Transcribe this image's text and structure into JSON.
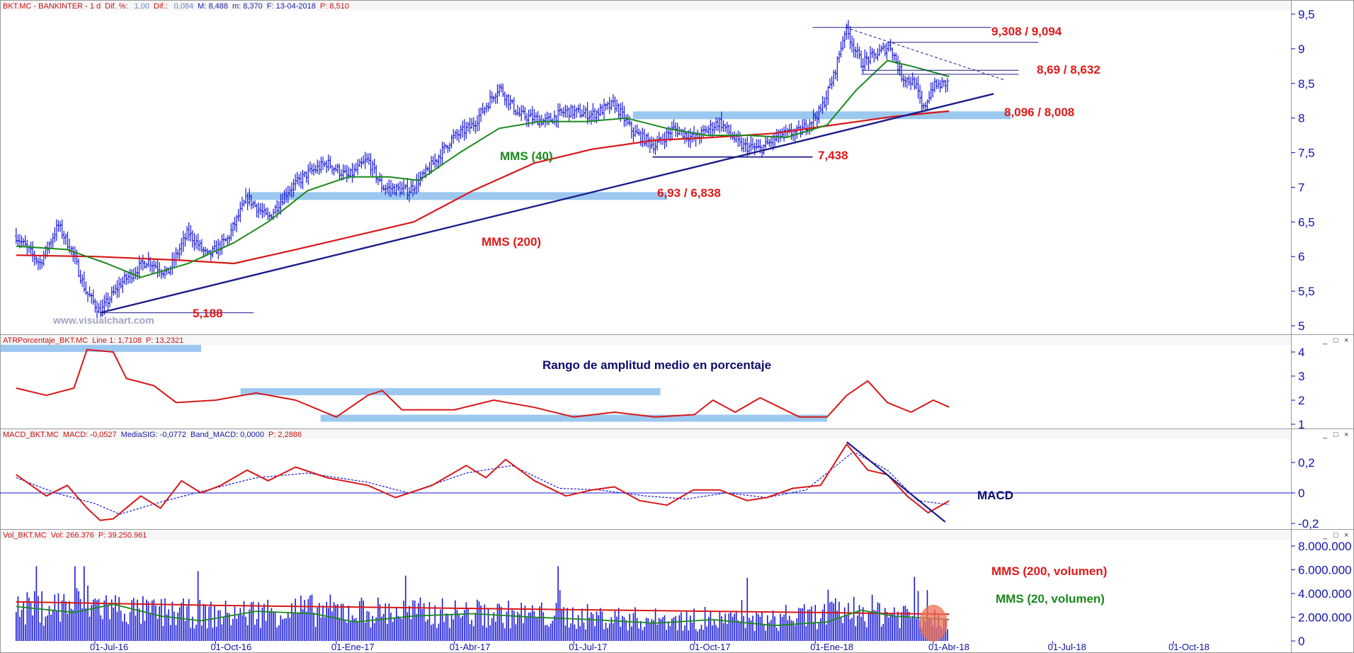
{
  "colors": {
    "price_bars": "#1818d8",
    "sma40": "#1a8a1a",
    "sma200": "#d81818",
    "trendline": "#1c1c8c",
    "zone": "#9cc8f0",
    "label_red": "#e01818",
    "label_navy": "#0c0c6c",
    "label_green": "#1a8a1a",
    "axis_text": "#1212a8",
    "header_red": "#cc1010",
    "header_blue": "#1c1ca8",
    "header_gray": "#6a88c8",
    "volume_highlight": "#f07050"
  },
  "watermark": "www.visualchart.com",
  "panels": {
    "price": {
      "header": [
        {
          "text": "BKT.MC - BANKINTER - 1 d",
          "color": "red"
        },
        {
          "text": "Dif. %: ",
          "color": "red"
        },
        {
          "text": "1,00",
          "color": "gray"
        },
        {
          "text": "Dif.: ",
          "color": "red"
        },
        {
          "text": "0,084",
          "color": "gray"
        },
        {
          "text": "M: 8,488",
          "color": "blue"
        },
        {
          "text": "m: 8,370",
          "color": "blue"
        },
        {
          "text": "F: 13-04-2018",
          "color": "blue"
        },
        {
          "text": "P: 8,510",
          "color": "red"
        }
      ],
      "y_ticks": [
        "9,5",
        "9",
        "8,5",
        "8",
        "7,5",
        "7",
        "6,5",
        "6",
        "5,5",
        "5"
      ]
    },
    "atr": {
      "header": [
        {
          "text": "ATRPorcentaje_BKT.MC",
          "color": "red"
        },
        {
          "text": "Line 1: 1,7108",
          "color": "red"
        },
        {
          "text": "P: 13,2321",
          "color": "red"
        }
      ],
      "y_ticks": [
        "4",
        "3",
        "2",
        "1"
      ]
    },
    "macd": {
      "header": [
        {
          "text": "MACD_BKT.MC",
          "color": "red"
        },
        {
          "text": "MACD: -0,0527",
          "color": "red"
        },
        {
          "text": "MediaSIG: -0,0772",
          "color": "blue"
        },
        {
          "text": "Band_MACD: 0,0000",
          "color": "blue"
        },
        {
          "text": "P: 2,2886",
          "color": "red"
        }
      ],
      "y_ticks": [
        "0,2",
        "0",
        "-0,2"
      ]
    },
    "volume": {
      "header": [
        {
          "text": "Vol_BKT.MC",
          "color": "red"
        },
        {
          "text": "Vol: 266.376",
          "color": "red"
        },
        {
          "text": "P: 39.250.961",
          "color": "red"
        }
      ],
      "y_ticks": [
        "8.000.000",
        "6.000.000",
        "4.000.000",
        "2.000.000",
        "0"
      ]
    }
  },
  "x_axis_labels": [
    "01-Jul-16",
    "01-Oct-16",
    "01-Ene-17",
    "01-Abr-17",
    "01-Jul-17",
    "01-Oct-17",
    "01-Ene-18",
    "01-Abr-18",
    "01-Jul-18",
    "01-Oct-18"
  ],
  "chart_data": [
    {
      "type": "bar",
      "panel": "price",
      "series_style": "ohlc",
      "ylim": [
        5,
        9.5
      ],
      "anchor_points_date_close": [
        [
          "2016-05-02",
          6.3
        ],
        [
          "2016-05-20",
          5.9
        ],
        [
          "2016-06-03",
          6.45
        ],
        [
          "2016-06-13",
          6.1
        ],
        [
          "2016-06-24",
          5.5
        ],
        [
          "2016-07-05",
          5.2
        ],
        [
          "2016-07-20",
          5.6
        ],
        [
          "2016-08-10",
          5.95
        ],
        [
          "2016-08-25",
          5.75
        ],
        [
          "2016-09-10",
          6.35
        ],
        [
          "2016-09-25",
          6.0
        ],
        [
          "2016-10-10",
          6.25
        ],
        [
          "2016-10-25",
          6.85
        ],
        [
          "2016-11-10",
          6.55
        ],
        [
          "2016-11-25",
          6.95
        ],
        [
          "2016-12-10",
          7.2
        ],
        [
          "2016-12-25",
          7.35
        ],
        [
          "2017-01-10",
          7.15
        ],
        [
          "2017-01-25",
          7.4
        ],
        [
          "2017-02-05",
          7.0
        ],
        [
          "2017-02-25",
          6.95
        ],
        [
          "2017-03-10",
          7.2
        ],
        [
          "2017-03-30",
          7.7
        ],
        [
          "2017-04-15",
          7.9
        ],
        [
          "2017-05-05",
          8.45
        ],
        [
          "2017-05-20",
          8.05
        ],
        [
          "2017-06-10",
          7.95
        ],
        [
          "2017-06-25",
          8.1
        ],
        [
          "2017-07-15",
          8.05
        ],
        [
          "2017-08-01",
          8.2
        ],
        [
          "2017-08-15",
          7.8
        ],
        [
          "2017-09-01",
          7.6
        ],
        [
          "2017-09-15",
          7.85
        ],
        [
          "2017-10-01",
          7.7
        ],
        [
          "2017-10-20",
          7.95
        ],
        [
          "2017-11-05",
          7.6
        ],
        [
          "2017-11-20",
          7.55
        ],
        [
          "2017-12-05",
          7.75
        ],
        [
          "2017-12-20",
          7.8
        ],
        [
          "2018-01-05",
          8.1
        ],
        [
          "2018-01-15",
          8.6
        ],
        [
          "2018-01-24",
          9.3
        ],
        [
          "2018-02-05",
          8.8
        ],
        [
          "2018-02-15",
          8.9
        ],
        [
          "2018-02-27",
          9.05
        ],
        [
          "2018-03-08",
          8.6
        ],
        [
          "2018-03-18",
          8.5
        ],
        [
          "2018-03-24",
          8.1
        ],
        [
          "2018-03-31",
          8.45
        ],
        [
          "2018-04-13",
          8.51
        ]
      ]
    },
    {
      "type": "line",
      "panel": "price",
      "series": [
        {
          "name": "MMS (40)",
          "points_date_value": [
            [
              "2016-05-02",
              6.15
            ],
            [
              "2016-06-10",
              6.1
            ],
            [
              "2016-07-10",
              5.9
            ],
            [
              "2016-08-05",
              5.7
            ],
            [
              "2016-09-10",
              5.9
            ],
            [
              "2016-10-15",
              6.2
            ],
            [
              "2016-11-10",
              6.5
            ],
            [
              "2016-12-10",
              6.95
            ],
            [
              "2017-01-10",
              7.15
            ],
            [
              "2017-02-10",
              7.15
            ],
            [
              "2017-03-05",
              7.1
            ],
            [
              "2017-04-05",
              7.5
            ],
            [
              "2017-05-05",
              7.85
            ],
            [
              "2017-06-05",
              7.95
            ],
            [
              "2017-07-10",
              7.95
            ],
            [
              "2017-08-10",
              8.0
            ],
            [
              "2017-09-10",
              7.85
            ],
            [
              "2017-10-10",
              7.75
            ],
            [
              "2017-11-10",
              7.75
            ],
            [
              "2017-12-10",
              7.72
            ],
            [
              "2018-01-10",
              7.9
            ],
            [
              "2018-02-01",
              8.4
            ],
            [
              "2018-02-25",
              8.83
            ],
            [
              "2018-03-15",
              8.75
            ],
            [
              "2018-04-13",
              8.6
            ]
          ]
        },
        {
          "name": "MMS (200)",
          "points_date_value": [
            [
              "2016-05-02",
              6.02
            ],
            [
              "2016-07-01",
              6.0
            ],
            [
              "2016-09-01",
              5.95
            ],
            [
              "2016-10-15",
              5.9
            ],
            [
              "2016-12-01",
              6.1
            ],
            [
              "2017-01-15",
              6.3
            ],
            [
              "2017-03-01",
              6.5
            ],
            [
              "2017-04-15",
              6.95
            ],
            [
              "2017-06-01",
              7.35
            ],
            [
              "2017-07-15",
              7.55
            ],
            [
              "2017-09-01",
              7.68
            ],
            [
              "2017-10-15",
              7.72
            ],
            [
              "2017-12-01",
              7.78
            ],
            [
              "2018-01-15",
              7.9
            ],
            [
              "2018-03-01",
              8.02
            ],
            [
              "2018-04-13",
              8.1
            ]
          ]
        }
      ]
    },
    {
      "type": "line",
      "panel": "atr",
      "ylim": [
        1,
        4.3
      ],
      "series": [
        {
          "name": "ATRPorcentaje_BKT.MC",
          "points_date_value": [
            [
              "2016-05-02",
              2.5
            ],
            [
              "2016-05-25",
              2.2
            ],
            [
              "2016-06-15",
              2.5
            ],
            [
              "2016-06-25",
              4.1
            ],
            [
              "2016-07-15",
              4.0
            ],
            [
              "2016-07-25",
              2.9
            ],
            [
              "2016-08-15",
              2.6
            ],
            [
              "2016-09-01",
              1.9
            ],
            [
              "2016-10-01",
              2.0
            ],
            [
              "2016-11-01",
              2.3
            ],
            [
              "2016-12-01",
              2.0
            ],
            [
              "2017-01-01",
              1.3
            ],
            [
              "2017-01-25",
              2.2
            ],
            [
              "2017-02-05",
              2.4
            ],
            [
              "2017-02-20",
              1.6
            ],
            [
              "2017-04-01",
              1.6
            ],
            [
              "2017-05-01",
              2.0
            ],
            [
              "2017-06-01",
              1.7
            ],
            [
              "2017-07-01",
              1.3
            ],
            [
              "2017-08-01",
              1.5
            ],
            [
              "2017-09-01",
              1.3
            ],
            [
              "2017-10-01",
              1.4
            ],
            [
              "2017-10-15",
              2.0
            ],
            [
              "2017-11-01",
              1.5
            ],
            [
              "2017-11-20",
              2.1
            ],
            [
              "2017-12-20",
              1.3
            ],
            [
              "2018-01-10",
              1.3
            ],
            [
              "2018-01-25",
              2.2
            ],
            [
              "2018-02-10",
              2.8
            ],
            [
              "2018-02-25",
              1.9
            ],
            [
              "2018-03-15",
              1.5
            ],
            [
              "2018-04-01",
              2.0
            ],
            [
              "2018-04-13",
              1.7108
            ]
          ]
        }
      ]
    },
    {
      "type": "line",
      "panel": "macd",
      "ylim": [
        -0.25,
        0.35
      ],
      "series": [
        {
          "name": "MACD",
          "points_date_value": [
            [
              "2016-05-02",
              0.12
            ],
            [
              "2016-05-25",
              -0.02
            ],
            [
              "2016-06-10",
              0.05
            ],
            [
              "2016-06-25",
              -0.1
            ],
            [
              "2016-07-05",
              -0.18
            ],
            [
              "2016-07-15",
              -0.17
            ],
            [
              "2016-08-05",
              -0.02
            ],
            [
              "2016-08-20",
              -0.1
            ],
            [
              "2016-09-05",
              0.08
            ],
            [
              "2016-09-20",
              0.0
            ],
            [
              "2016-10-05",
              0.05
            ],
            [
              "2016-10-25",
              0.15
            ],
            [
              "2016-11-10",
              0.08
            ],
            [
              "2016-12-01",
              0.17
            ],
            [
              "2016-12-25",
              0.1
            ],
            [
              "2017-01-25",
              0.05
            ],
            [
              "2017-02-15",
              -0.03
            ],
            [
              "2017-03-15",
              0.05
            ],
            [
              "2017-04-10",
              0.18
            ],
            [
              "2017-04-25",
              0.1
            ],
            [
              "2017-05-10",
              0.22
            ],
            [
              "2017-06-01",
              0.08
            ],
            [
              "2017-06-25",
              -0.02
            ],
            [
              "2017-07-15",
              0.02
            ],
            [
              "2017-08-01",
              0.04
            ],
            [
              "2017-08-20",
              -0.05
            ],
            [
              "2017-09-10",
              -0.08
            ],
            [
              "2017-09-30",
              0.02
            ],
            [
              "2017-10-20",
              0.02
            ],
            [
              "2017-11-10",
              -0.05
            ],
            [
              "2017-11-25",
              -0.03
            ],
            [
              "2017-12-15",
              0.03
            ],
            [
              "2018-01-05",
              0.05
            ],
            [
              "2018-01-25",
              0.32
            ],
            [
              "2018-02-10",
              0.15
            ],
            [
              "2018-02-25",
              0.12
            ],
            [
              "2018-03-12",
              -0.02
            ],
            [
              "2018-03-28",
              -0.13
            ],
            [
              "2018-04-13",
              -0.0527
            ]
          ]
        },
        {
          "name": "MediaSIG",
          "points_date_value": [
            [
              "2016-05-02",
              0.1
            ],
            [
              "2016-06-01",
              0.0
            ],
            [
              "2016-07-01",
              -0.07
            ],
            [
              "2016-07-20",
              -0.14
            ],
            [
              "2016-08-20",
              -0.06
            ],
            [
              "2016-09-25",
              0.02
            ],
            [
              "2016-11-01",
              0.1
            ],
            [
              "2016-12-10",
              0.13
            ],
            [
              "2017-01-25",
              0.07
            ],
            [
              "2017-02-25",
              0.0
            ],
            [
              "2017-04-10",
              0.13
            ],
            [
              "2017-05-15",
              0.18
            ],
            [
              "2017-06-20",
              0.03
            ],
            [
              "2017-07-20",
              0.02
            ],
            [
              "2017-08-25",
              -0.02
            ],
            [
              "2017-09-25",
              -0.04
            ],
            [
              "2017-10-25",
              0.0
            ],
            [
              "2017-11-25",
              -0.03
            ],
            [
              "2017-12-25",
              0.02
            ],
            [
              "2018-01-30",
              0.27
            ],
            [
              "2018-02-25",
              0.15
            ],
            [
              "2018-03-20",
              -0.05
            ],
            [
              "2018-04-13",
              -0.0772
            ]
          ]
        }
      ]
    },
    {
      "type": "bar",
      "panel": "volume",
      "ylim": [
        0,
        8500000
      ],
      "series": [
        {
          "name": "MMS (200, volumen)",
          "points_date_value": [
            [
              "2016-05-02",
              3300000
            ],
            [
              "2016-10-01",
              3000000
            ],
            [
              "2017-03-01",
              2800000
            ],
            [
              "2017-08-01",
              2600000
            ],
            [
              "2018-01-01",
              2400000
            ],
            [
              "2018-04-13",
              2250000
            ]
          ]
        },
        {
          "name": "MMS (20, volumen)",
          "points_date_value": [
            [
              "2016-05-02",
              2900000
            ],
            [
              "2016-06-15",
              2400000
            ],
            [
              "2016-07-15",
              3100000
            ],
            [
              "2016-08-20",
              2100000
            ],
            [
              "2016-09-20",
              1700000
            ],
            [
              "2016-11-01",
              2500000
            ],
            [
              "2016-12-15",
              2300000
            ],
            [
              "2017-01-15",
              1600000
            ],
            [
              "2017-03-01",
              2100000
            ],
            [
              "2017-04-15",
              2300000
            ],
            [
              "2017-06-01",
              2000000
            ],
            [
              "2017-07-15",
              1800000
            ],
            [
              "2017-09-01",
              1500000
            ],
            [
              "2017-10-15",
              1800000
            ],
            [
              "2017-12-01",
              1300000
            ],
            [
              "2018-01-10",
              1600000
            ],
            [
              "2018-02-05",
              2600000
            ],
            [
              "2018-03-01",
              2100000
            ],
            [
              "2018-04-13",
              1800000
            ]
          ]
        }
      ]
    }
  ],
  "annotations": {
    "price": {
      "r_9308": "9,308 / 9,094",
      "r_869": "8,69 / 8,632",
      "r_8096": "8,096 / 8,008",
      "s_7438": "7,438",
      "s_693": "6,93 / 6,838",
      "s_5188": "5,188",
      "mms40": "MMS (40)",
      "mms200": "MMS (200)"
    },
    "atr_title": "Rango de amplitud medio en porcentaje",
    "macd_title": "MACD",
    "vol_mms200": "MMS (200, volumen)",
    "vol_mms20": "MMS (20, volumen)"
  }
}
